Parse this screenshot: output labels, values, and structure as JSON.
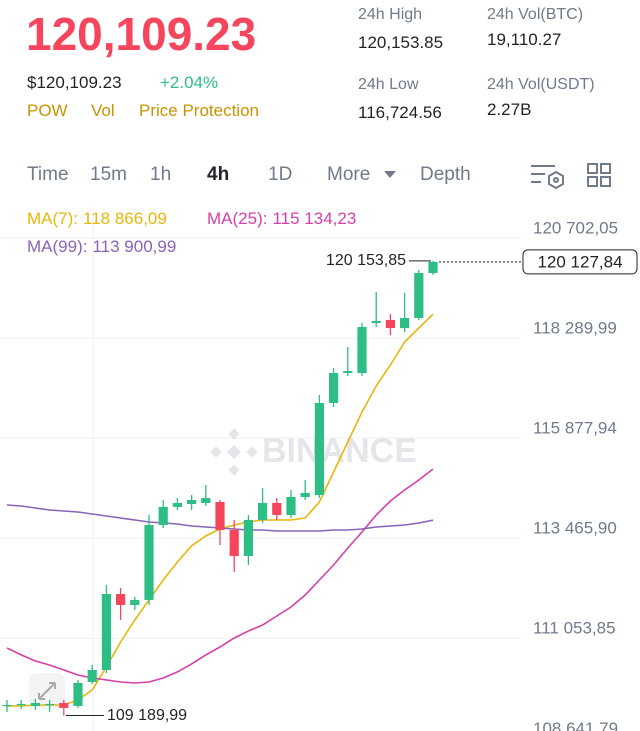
{
  "header": {
    "price": "120,109.23",
    "price_usd": "$120,109.23",
    "change": "+2.04%",
    "tags": [
      "POW",
      "Vol",
      "Price Protection"
    ],
    "stats": [
      {
        "label": "24h High",
        "value": "120,153.85"
      },
      {
        "label": "24h Vol(BTC)",
        "value": "19,110.27"
      },
      {
        "label": "24h Low",
        "value": "116,724.56"
      },
      {
        "label": "24h Vol(USDT)",
        "value": "2.27B"
      }
    ]
  },
  "tabs": {
    "items": [
      "Time",
      "15m",
      "1h",
      "4h",
      "1D",
      "More",
      "Depth"
    ],
    "active": 3
  },
  "chart_data": {
    "type": "candlestick",
    "watermark": "BINANCE",
    "open": [
      109421,
      109445,
      109421,
      109445,
      109493,
      109421,
      109999,
      110289,
      112121,
      111856,
      111977,
      113785,
      114219,
      114291,
      114315,
      114339,
      113664,
      113037,
      113905,
      114315,
      114026,
      114460,
      114508,
      116726,
      117449,
      117449,
      118655,
      118727,
      118534,
      118776,
      119860
    ],
    "high": [
      109566,
      109566,
      109590,
      109566,
      109566,
      110048,
      110409,
      112338,
      112266,
      112049,
      114026,
      114387,
      114436,
      114508,
      114749,
      114387,
      113905,
      114026,
      114677,
      114436,
      114629,
      114870,
      116919,
      117570,
      118076,
      118655,
      119402,
      118872,
      119378,
      119933,
      120153.85
    ],
    "low": [
      109276,
      109349,
      109324,
      109276,
      109189.99,
      109373,
      109951,
      110217,
      111494,
      111735,
      111856,
      113712,
      114146,
      114146,
      114243,
      113303,
      112652,
      112820,
      113833,
      113905,
      113954,
      114387,
      114436,
      116630,
      117377,
      117377,
      118559,
      118366,
      118438,
      118727,
      119812
    ],
    "close": [
      109445,
      109469,
      109493,
      109469,
      109373,
      109975,
      110289,
      112121,
      111856,
      111977,
      113785,
      114219,
      114315,
      114387,
      114436,
      113664,
      113037,
      113905,
      114315,
      114026,
      114460,
      114556,
      116726,
      117449,
      117498,
      118559,
      118703,
      118534,
      118776,
      119860,
      120127.84
    ],
    "up_color": "#2ebd85",
    "down_color": "#f6465d",
    "series": [
      {
        "name": "MA(7):",
        "color": "#e8b60c",
        "last_label": "118 866,09",
        "values": [
          109421,
          109421,
          109445,
          109445,
          109445,
          109566,
          109807,
          110361,
          110964,
          111494,
          111977,
          112459,
          112893,
          113279,
          113520,
          113688,
          113785,
          113857,
          113905,
          113905,
          113905,
          113954,
          114339,
          115063,
          115786,
          116509,
          117136,
          117642,
          118197,
          118534,
          118866.09
        ]
      },
      {
        "name": "MA(25):",
        "color": "#d63fa7",
        "last_label": "115 134,23",
        "values": [
          110819,
          110651,
          110506,
          110409,
          110289,
          110168,
          110096,
          110048,
          109999,
          109975,
          109999,
          110096,
          110241,
          110434,
          110651,
          110843,
          111060,
          111229,
          111374,
          111591,
          111808,
          112097,
          112459,
          112820,
          113230,
          113616,
          114026,
          114363,
          114629,
          114870,
          115134.23
        ]
      },
      {
        "name": "MA(99):",
        "color": "#8a63b8",
        "last_label": "113 900,99",
        "values": [
          114267,
          114243,
          114195,
          114146,
          114122,
          114098,
          114050,
          114002,
          113954,
          113905,
          113857,
          113833,
          113809,
          113761,
          113737,
          113712,
          113688,
          113664,
          113664,
          113640,
          113640,
          113640,
          113640,
          113664,
          113664,
          113688,
          113737,
          113761,
          113785,
          113833,
          113900.99
        ]
      }
    ],
    "ylim": [
      108600,
      121500
    ],
    "yticks": [
      {
        "value": 120702.05,
        "label": "120 702,05"
      },
      {
        "value": 118289.99,
        "label": "118 289,99"
      },
      {
        "value": 115877.94,
        "label": "115 877,94"
      },
      {
        "value": 113465.9,
        "label": "113 465,90"
      },
      {
        "value": 111053.85,
        "label": "111 053,85"
      },
      {
        "value": 108641.79,
        "label": "108 641,79"
      }
    ],
    "grid": true,
    "high_label": {
      "value": 120153.85,
      "label": "120 153,85"
    },
    "low_label": {
      "value": 109189.99,
      "label": "109 189,99"
    },
    "last_price": {
      "value": 120127.84,
      "label": "120 127,84"
    }
  }
}
